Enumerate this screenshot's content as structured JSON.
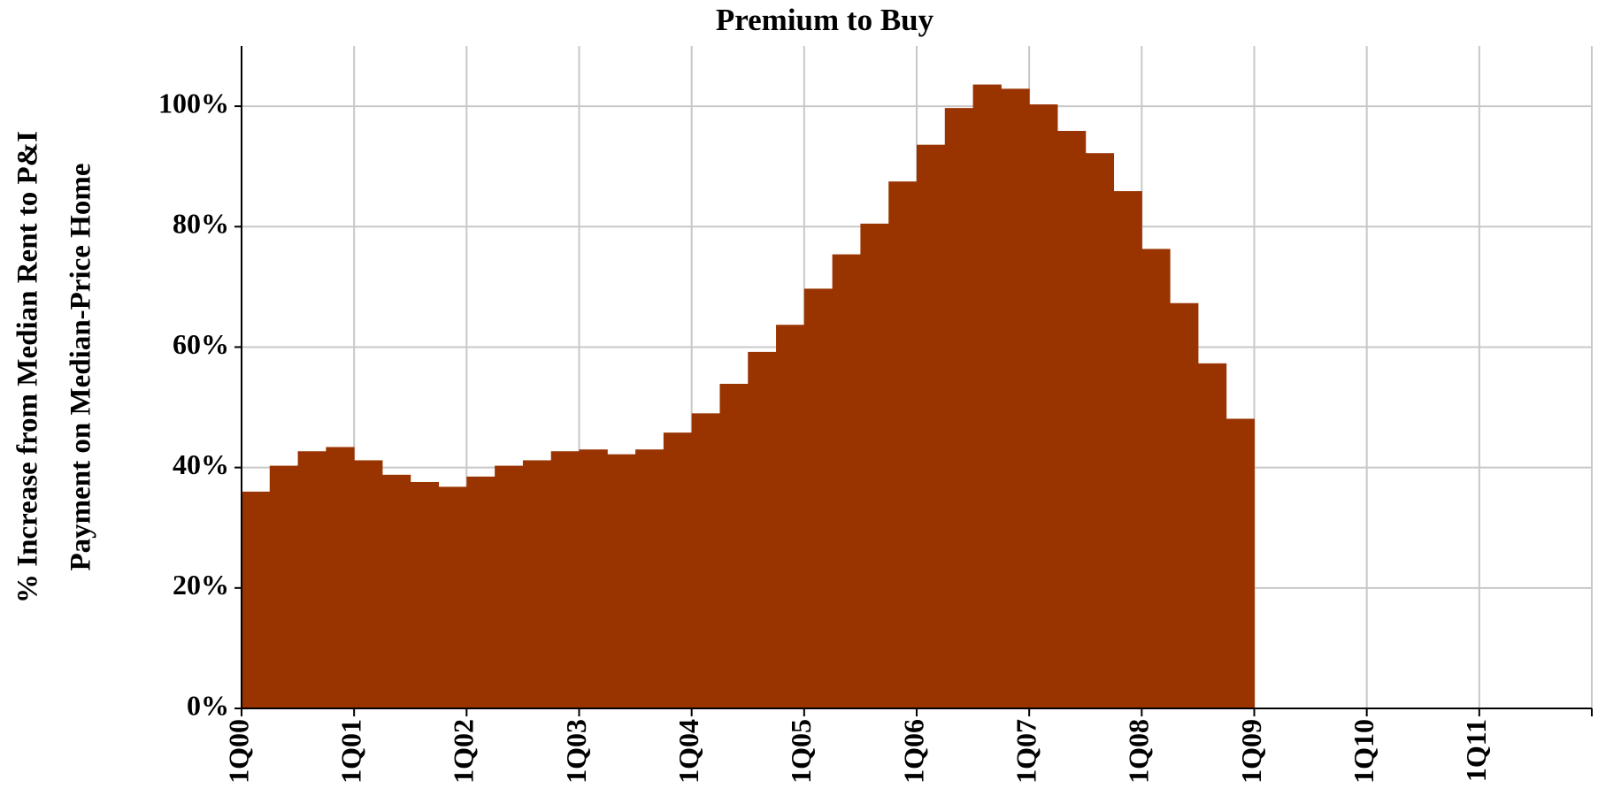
{
  "chart_data": {
    "type": "bar",
    "title": "Premium to Buy",
    "y_label": [
      "% Increase from Median Rent to P&I",
      "Payment on Median-Price Home"
    ],
    "categories": [
      "1Q00",
      null,
      null,
      null,
      "1Q01",
      null,
      null,
      null,
      "1Q02",
      null,
      null,
      null,
      "1Q03",
      null,
      null,
      null,
      "1Q04",
      null,
      null,
      null,
      "1Q05",
      null,
      null,
      null,
      "1Q06",
      null,
      null,
      null,
      "1Q07",
      null,
      null,
      null,
      "1Q08",
      null,
      null,
      null,
      "1Q09",
      null,
      null,
      null,
      "1Q10",
      null,
      null,
      null,
      "1Q11",
      null,
      null,
      null
    ],
    "values": [
      36,
      40.3,
      42.7,
      43.4,
      41.2,
      38.8,
      37.6,
      36.8,
      38.5,
      40.3,
      41.2,
      42.7,
      43,
      42.2,
      43,
      45.8,
      49,
      53.9,
      59.2,
      63.7,
      69.7,
      75.4,
      80.5,
      87.5,
      93.6,
      99.7,
      103.6,
      102.9,
      100.3,
      95.9,
      92.2,
      85.9,
      76.3,
      67.3,
      57.3,
      48.1,
      null,
      null,
      null,
      null,
      null,
      null,
      null,
      null,
      null,
      null,
      null,
      null
    ],
    "color": "#993300",
    "ylim": [
      0,
      110
    ],
    "yticks": [
      {
        "value": 0,
        "label": "0%"
      },
      {
        "value": 20,
        "label": "20%"
      },
      {
        "value": 40,
        "label": "40%"
      },
      {
        "value": 60,
        "label": "60%"
      },
      {
        "value": 80,
        "label": "80%"
      },
      {
        "value": 100,
        "label": "100%"
      }
    ],
    "grid": true
  }
}
